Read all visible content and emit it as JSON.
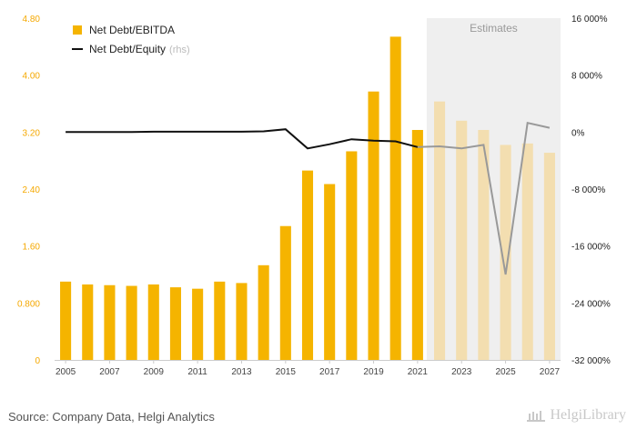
{
  "legend": {
    "bar_label": "Net Debt/EBITDA",
    "line_label": "Net Debt/Equity",
    "line_suffix": "(rhs)"
  },
  "estimates_label": "Estimates",
  "source_text": "Source: Company Data, Helgi Analytics",
  "brand": {
    "name": "HelgiLibrary",
    "icon": "library-building-icon"
  },
  "colors": {
    "bar_actual": "#f5b400",
    "bar_estimate": "#f3deb0",
    "line_actual": "#111111",
    "line_estimate": "#999999",
    "estimates_band": "#efefef"
  },
  "chart_data": {
    "type": "bar+line",
    "years": [
      2005,
      2006,
      2007,
      2008,
      2009,
      2010,
      2011,
      2012,
      2013,
      2014,
      2015,
      2016,
      2017,
      2018,
      2019,
      2020,
      2021,
      2022,
      2023,
      2024,
      2025,
      2026,
      2027
    ],
    "x_tick_labels": [
      "2005",
      "2007",
      "2009",
      "2011",
      "2013",
      "2015",
      "2017",
      "2019",
      "2021",
      "2023",
      "2025",
      "2027"
    ],
    "first_estimate_year": 2022,
    "series": [
      {
        "name": "Net Debt/EBITDA",
        "type": "bar",
        "axis": "left",
        "values": [
          1.1,
          1.06,
          1.05,
          1.04,
          1.06,
          1.02,
          1.0,
          1.1,
          1.08,
          1.33,
          1.88,
          2.66,
          2.47,
          2.93,
          3.77,
          4.54,
          3.23,
          3.63,
          3.36,
          3.23,
          3.02,
          3.04,
          2.91
        ]
      },
      {
        "name": "Net Debt/Equity",
        "type": "line",
        "axis": "right",
        "values": [
          0.0,
          0.0,
          0.0,
          0.0,
          0.05,
          0.05,
          0.05,
          0.05,
          0.05,
          0.1,
          0.4,
          -2.3,
          -1.7,
          -1.0,
          -1.2,
          -1.3,
          -2.1,
          -2.0,
          -2.3,
          -1.8,
          -20.0,
          1.3,
          0.6
        ]
      }
    ],
    "left_axis": {
      "min": 0,
      "max": 4.8,
      "ticks": [
        "0",
        "0.800",
        "1.60",
        "2.40",
        "3.20",
        "4.00",
        "4.80"
      ]
    },
    "right_axis": {
      "min": -32000,
      "max": 16000,
      "unit": "%",
      "ticks": [
        "-32 000%",
        "-24 000%",
        "-16 000%",
        "-8 000%",
        "0%",
        "8 000%",
        "16 000%"
      ]
    },
    "right_axis_value_scale_note_units": "thousands of percent"
  }
}
